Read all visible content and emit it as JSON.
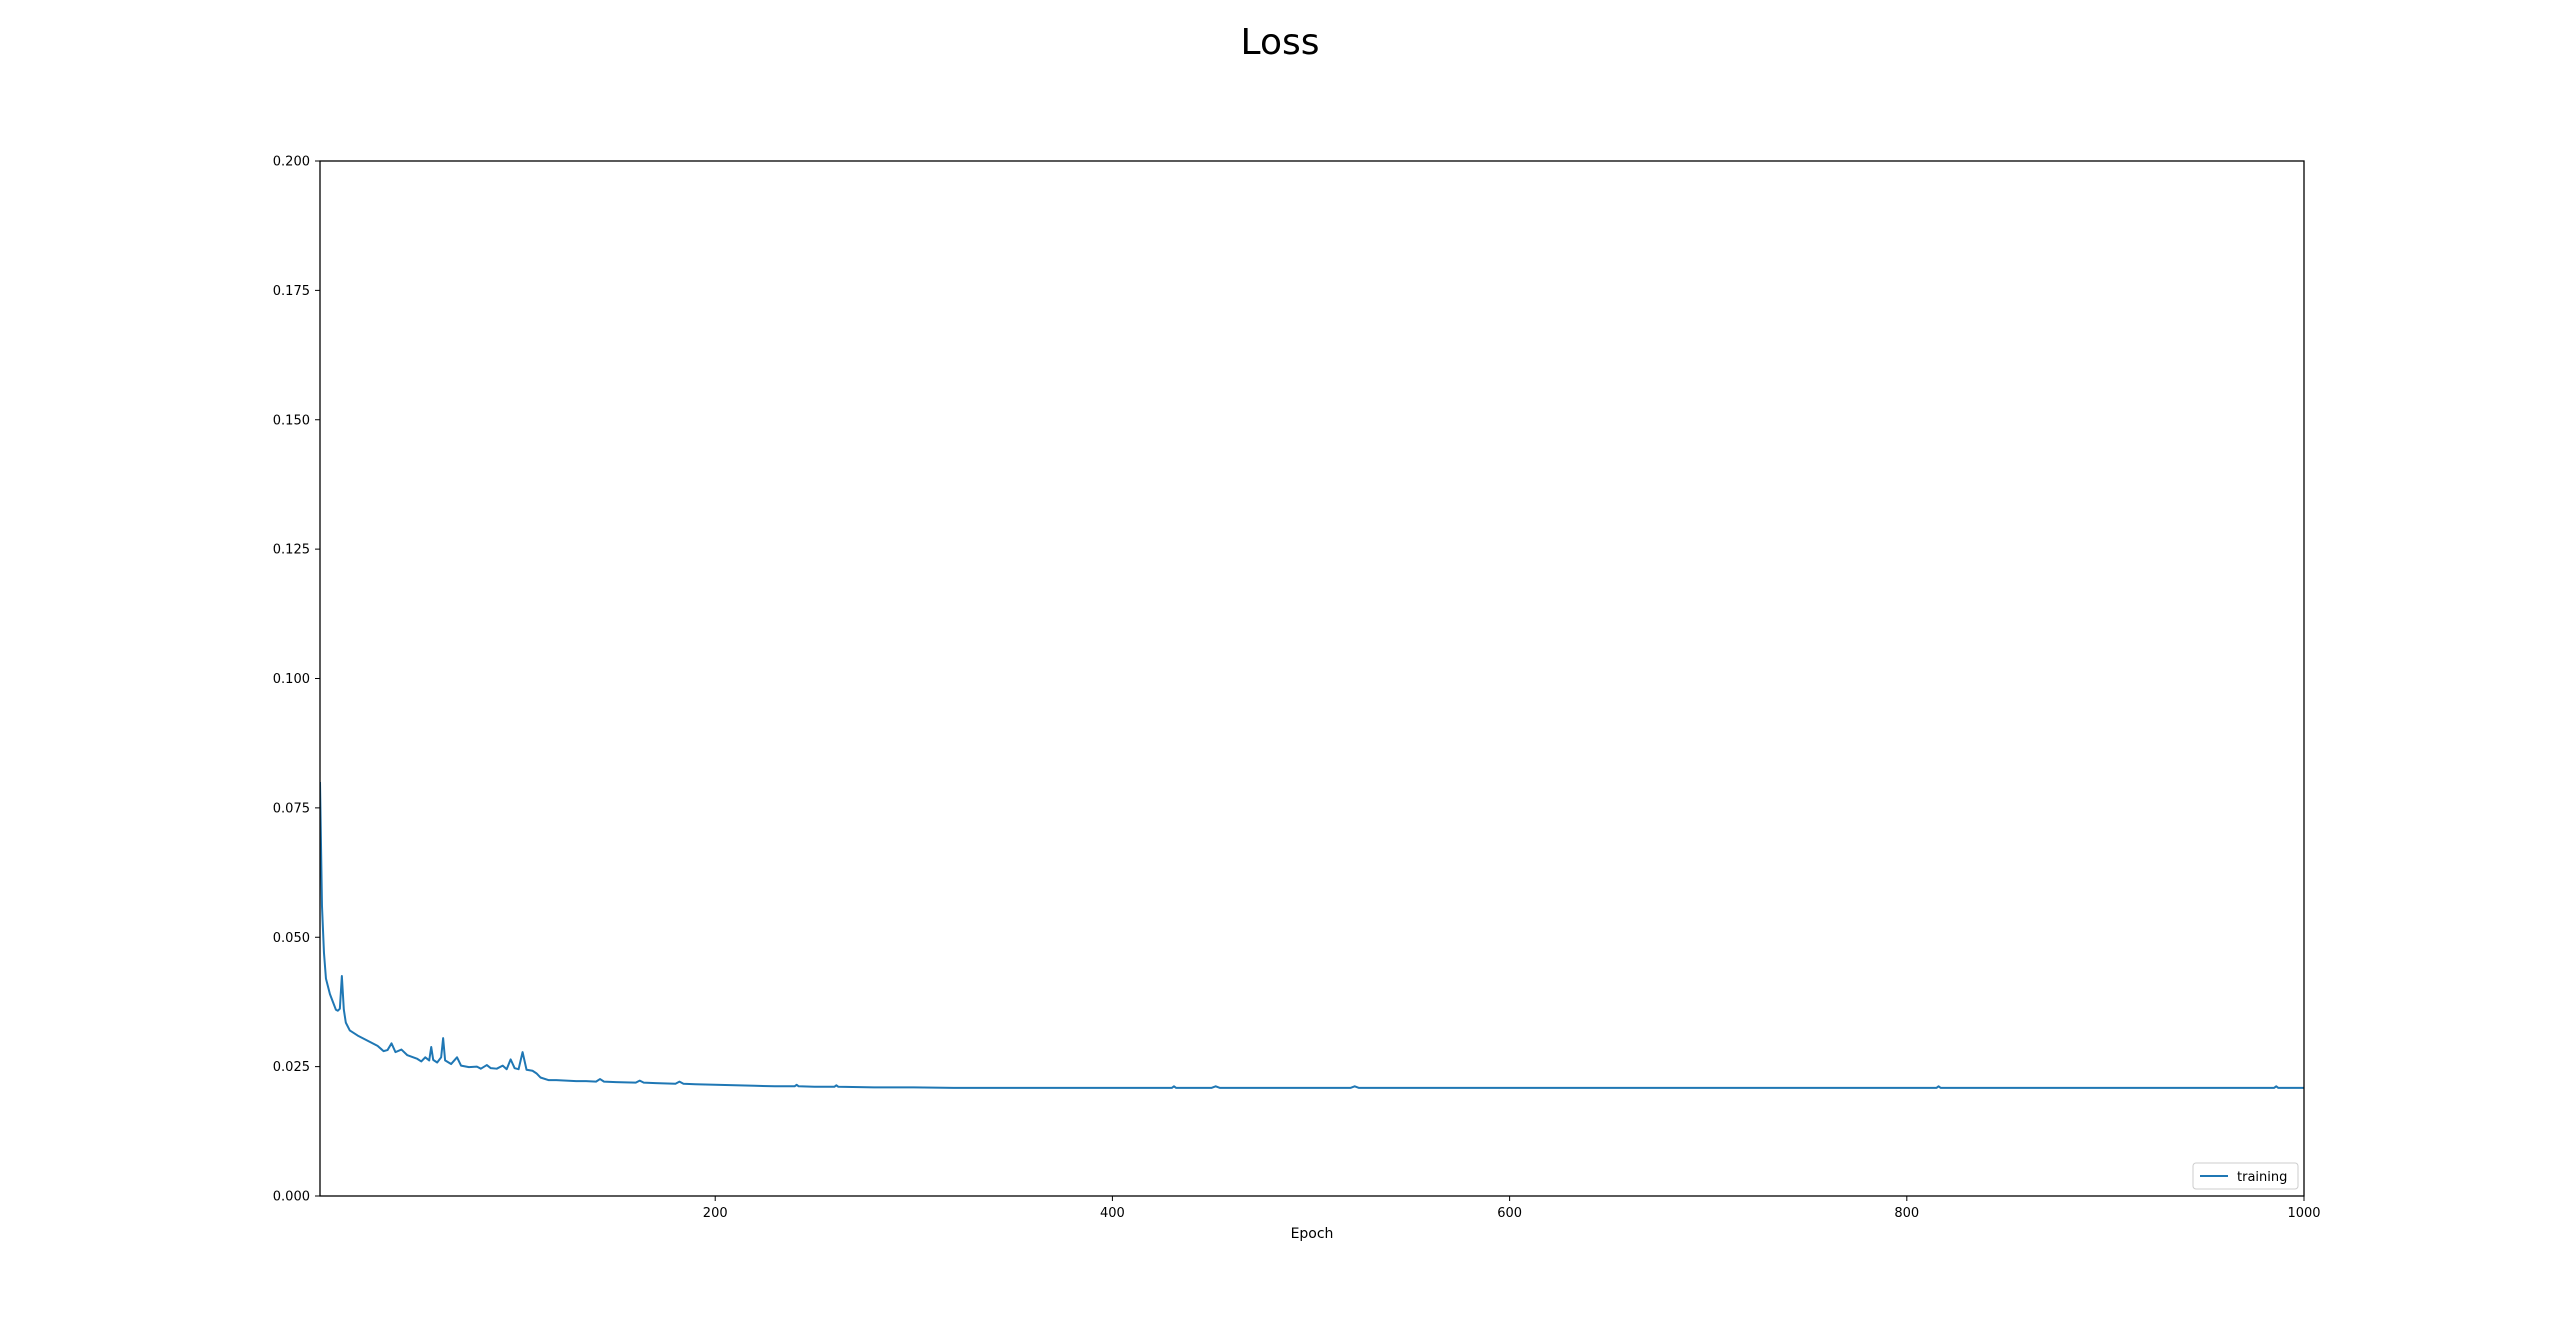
{
  "chart_data": {
    "type": "line",
    "title": "Loss",
    "xlabel": "Epoch",
    "ylabel": "",
    "xlim": [
      1,
      1000
    ],
    "ylim": [
      0,
      0.2
    ],
    "xticks": [
      200,
      400,
      600,
      800,
      1000
    ],
    "xtick_labels": [
      "200",
      "400",
      "600",
      "800",
      "1000"
    ],
    "yticks": [
      0,
      0.025,
      0.05,
      0.075,
      0.1,
      0.125,
      0.15,
      0.175,
      0.2
    ],
    "ytick_labels": [
      "0.000",
      "0.025",
      "0.050",
      "0.075",
      "0.100",
      "0.125",
      "0.150",
      "0.175",
      "0.200"
    ],
    "grid": false,
    "legend_position": "lower-right",
    "series": [
      {
        "name": "training",
        "color": "#1f77b4",
        "points": [
          [
            1,
            0.08
          ],
          [
            2,
            0.056
          ],
          [
            3,
            0.047
          ],
          [
            4,
            0.042
          ],
          [
            6,
            0.039
          ],
          [
            8,
            0.037
          ],
          [
            9,
            0.036
          ],
          [
            10,
            0.0358
          ],
          [
            11,
            0.0362
          ],
          [
            12,
            0.0425
          ],
          [
            13,
            0.036
          ],
          [
            14,
            0.0335
          ],
          [
            16,
            0.032
          ],
          [
            20,
            0.031
          ],
          [
            25,
            0.03
          ],
          [
            30,
            0.029
          ],
          [
            33,
            0.028
          ],
          [
            35,
            0.0282
          ],
          [
            37,
            0.0295
          ],
          [
            39,
            0.0278
          ],
          [
            42,
            0.0283
          ],
          [
            45,
            0.0272
          ],
          [
            50,
            0.0265
          ],
          [
            52,
            0.026
          ],
          [
            54,
            0.0268
          ],
          [
            56,
            0.0262
          ],
          [
            57,
            0.0288
          ],
          [
            58,
            0.0263
          ],
          [
            60,
            0.0258
          ],
          [
            62,
            0.0268
          ],
          [
            63,
            0.0305
          ],
          [
            64,
            0.0262
          ],
          [
            67,
            0.0255
          ],
          [
            70,
            0.0268
          ],
          [
            72,
            0.0252
          ],
          [
            76,
            0.0249
          ],
          [
            80,
            0.025
          ],
          [
            82,
            0.0246
          ],
          [
            85,
            0.0253
          ],
          [
            87,
            0.0247
          ],
          [
            90,
            0.0246
          ],
          [
            93,
            0.0252
          ],
          [
            95,
            0.0245
          ],
          [
            97,
            0.0264
          ],
          [
            99,
            0.0247
          ],
          [
            101,
            0.0245
          ],
          [
            103,
            0.0278
          ],
          [
            105,
            0.0244
          ],
          [
            108,
            0.0242
          ],
          [
            110,
            0.0237
          ],
          [
            112,
            0.0229
          ],
          [
            116,
            0.0224
          ],
          [
            120,
            0.0224
          ],
          [
            125,
            0.0223
          ],
          [
            130,
            0.0222
          ],
          [
            135,
            0.0222
          ],
          [
            140,
            0.0221
          ],
          [
            142,
            0.0226
          ],
          [
            144,
            0.0221
          ],
          [
            150,
            0.022
          ],
          [
            160,
            0.0219
          ],
          [
            162,
            0.0223
          ],
          [
            164,
            0.0219
          ],
          [
            170,
            0.0218
          ],
          [
            180,
            0.0217
          ],
          [
            182,
            0.0221
          ],
          [
            184,
            0.0217
          ],
          [
            190,
            0.0216
          ],
          [
            200,
            0.0215
          ],
          [
            210,
            0.0214
          ],
          [
            220,
            0.0213
          ],
          [
            230,
            0.0212
          ],
          [
            240,
            0.0212
          ],
          [
            241,
            0.0215
          ],
          [
            242,
            0.0212
          ],
          [
            250,
            0.0211
          ],
          [
            260,
            0.0211
          ],
          [
            261,
            0.0214
          ],
          [
            262,
            0.0211
          ],
          [
            280,
            0.021
          ],
          [
            300,
            0.021
          ],
          [
            320,
            0.0209
          ],
          [
            340,
            0.0209
          ],
          [
            360,
            0.0209
          ],
          [
            380,
            0.0209
          ],
          [
            400,
            0.0209
          ],
          [
            420,
            0.0209
          ],
          [
            430,
            0.0209
          ],
          [
            431,
            0.0212
          ],
          [
            432,
            0.0209
          ],
          [
            450,
            0.0209
          ],
          [
            452,
            0.0212
          ],
          [
            454,
            0.0209
          ],
          [
            480,
            0.0209
          ],
          [
            500,
            0.0209
          ],
          [
            520,
            0.0209
          ],
          [
            522,
            0.0212
          ],
          [
            524,
            0.0209
          ],
          [
            550,
            0.0209
          ],
          [
            580,
            0.0209
          ],
          [
            600,
            0.0209
          ],
          [
            630,
            0.0209
          ],
          [
            660,
            0.0209
          ],
          [
            700,
            0.0209
          ],
          [
            750,
            0.0209
          ],
          [
            800,
            0.0209
          ],
          [
            815,
            0.0209
          ],
          [
            816,
            0.0212
          ],
          [
            817,
            0.0209
          ],
          [
            850,
            0.0209
          ],
          [
            900,
            0.0209
          ],
          [
            950,
            0.0209
          ],
          [
            985,
            0.0209
          ],
          [
            986,
            0.0212
          ],
          [
            987,
            0.0209
          ],
          [
            1000,
            0.0209
          ]
        ]
      }
    ]
  }
}
